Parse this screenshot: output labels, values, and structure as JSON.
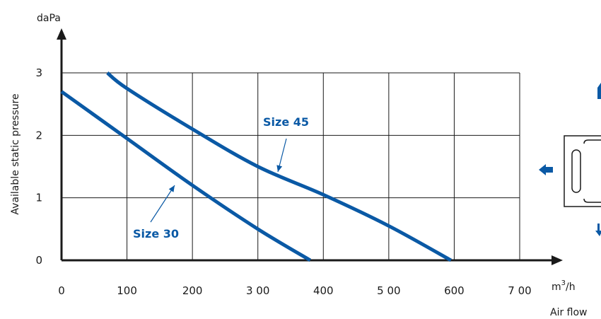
{
  "chart_data": {
    "type": "line",
    "ylabel": "Available static pressure",
    "yunit": "daPa",
    "xlabel": "Air flow",
    "xunit": "m3/h",
    "xlim": [
      0,
      700
    ],
    "ylim": [
      0,
      3
    ],
    "x_ticks": [
      "0",
      "100",
      "200",
      "3 00",
      "400",
      "5 00",
      "600",
      "7 00"
    ],
    "y_ticks": [
      "0",
      "1",
      "2",
      "3"
    ],
    "grid": true,
    "series": [
      {
        "name": "Size 45",
        "x": [
          70,
          100,
          200,
          300,
          400,
          500,
          595
        ],
        "y": [
          3.0,
          2.75,
          2.1,
          1.5,
          1.05,
          0.55,
          0.0
        ]
      },
      {
        "name": "Size 30",
        "x": [
          0,
          100,
          200,
          300,
          380
        ],
        "y": [
          2.7,
          1.95,
          1.2,
          0.5,
          0.0
        ]
      }
    ],
    "colors": {
      "curve": "#0a59a5",
      "grid": "#1a1a1a",
      "axis": "#1a1a1a",
      "annotation": "#0a59a5"
    }
  }
}
